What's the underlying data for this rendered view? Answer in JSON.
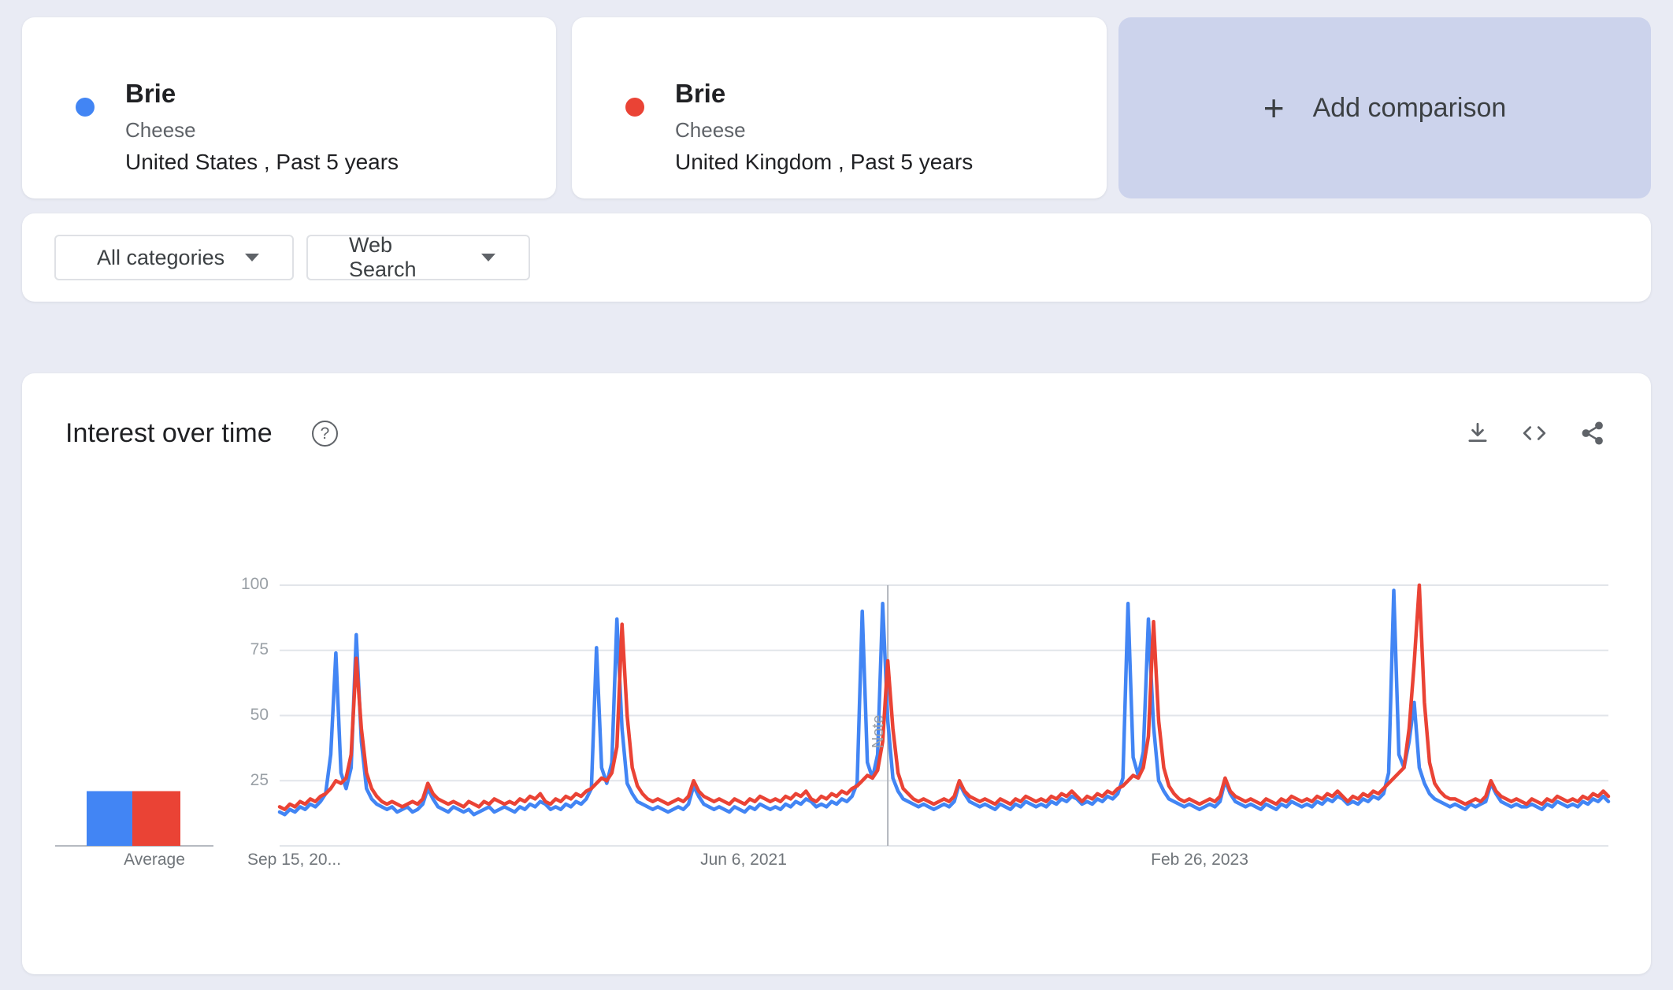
{
  "comparison_cards": [
    {
      "term": "Brie",
      "topic": "Cheese",
      "scope": "United States , Past 5 years",
      "color": "#4285f4"
    },
    {
      "term": "Brie",
      "topic": "Cheese",
      "scope": "United Kingdom , Past 5 years",
      "color": "#ea4335"
    }
  ],
  "add_comparison": {
    "plus_icon": "+",
    "label": "Add comparison"
  },
  "filters": {
    "category": "All categories",
    "search_type": "Web Search"
  },
  "chart_card": {
    "title": "Interest over time",
    "help_icon": "?"
  },
  "chart_data": {
    "type": "line",
    "title": "Interest over time",
    "x_tick_labels": [
      {
        "label": "Sep 15, 20...",
        "week": 0
      },
      {
        "label": "Jun 6, 2021",
        "week": 90
      },
      {
        "label": "Feb 26, 2023",
        "week": 180
      }
    ],
    "y_ticks": [
      25,
      50,
      75,
      100
    ],
    "ylim": [
      0,
      100
    ],
    "grid": true,
    "legend": "none",
    "note_label": "Note",
    "note_week": 119,
    "series": [
      {
        "name": "Brie (Cheese) — United States",
        "color": "#4285f4",
        "values": [
          13,
          12,
          14,
          13,
          15,
          14,
          16,
          15,
          17,
          20,
          35,
          74,
          28,
          22,
          30,
          81,
          40,
          22,
          18,
          16,
          15,
          14,
          15,
          13,
          14,
          15,
          13,
          14,
          16,
          22,
          18,
          15,
          14,
          13,
          15,
          14,
          13,
          14,
          12,
          13,
          14,
          15,
          13,
          14,
          15,
          14,
          13,
          15,
          14,
          16,
          15,
          17,
          16,
          14,
          15,
          14,
          16,
          15,
          17,
          16,
          18,
          22,
          76,
          30,
          24,
          32,
          87,
          45,
          24,
          20,
          17,
          16,
          15,
          14,
          15,
          14,
          13,
          14,
          15,
          14,
          16,
          23,
          19,
          16,
          15,
          14,
          15,
          14,
          13,
          15,
          14,
          13,
          15,
          14,
          16,
          15,
          14,
          15,
          14,
          16,
          15,
          17,
          16,
          18,
          17,
          15,
          16,
          15,
          17,
          16,
          18,
          17,
          19,
          24,
          90,
          32,
          26,
          35,
          93,
          48,
          26,
          21,
          18,
          17,
          16,
          15,
          16,
          15,
          14,
          15,
          16,
          15,
          17,
          24,
          20,
          17,
          16,
          15,
          16,
          15,
          14,
          16,
          15,
          14,
          16,
          15,
          17,
          16,
          15,
          16,
          15,
          17,
          16,
          18,
          17,
          19,
          18,
          16,
          17,
          16,
          18,
          17,
          19,
          18,
          20,
          26,
          93,
          34,
          27,
          36,
          87,
          46,
          25,
          21,
          18,
          17,
          16,
          15,
          16,
          15,
          14,
          15,
          16,
          15,
          17,
          25,
          20,
          17,
          16,
          15,
          16,
          15,
          14,
          16,
          15,
          14,
          16,
          15,
          17,
          16,
          15,
          16,
          15,
          17,
          16,
          18,
          17,
          19,
          18,
          16,
          17,
          16,
          18,
          17,
          19,
          18,
          20,
          28,
          98,
          35,
          30,
          40,
          55,
          30,
          24,
          20,
          18,
          17,
          16,
          15,
          16,
          15,
          14,
          16,
          15,
          16,
          17,
          24,
          20,
          17,
          16,
          15,
          16,
          15,
          15,
          16,
          15,
          14,
          16,
          15,
          17,
          16,
          15,
          16,
          15,
          17,
          16,
          18,
          17,
          19,
          17
        ]
      },
      {
        "name": "Brie (Cheese) — United Kingdom",
        "color": "#ea4335",
        "values": [
          15,
          14,
          16,
          15,
          17,
          16,
          18,
          17,
          19,
          20,
          22,
          25,
          24,
          26,
          35,
          72,
          45,
          28,
          22,
          19,
          17,
          16,
          17,
          16,
          15,
          16,
          17,
          16,
          18,
          24,
          20,
          18,
          17,
          16,
          17,
          16,
          15,
          17,
          16,
          15,
          17,
          16,
          18,
          17,
          16,
          17,
          16,
          18,
          17,
          19,
          18,
          20,
          17,
          16,
          18,
          17,
          19,
          18,
          20,
          19,
          21,
          22,
          24,
          26,
          25,
          28,
          38,
          85,
          50,
          30,
          23,
          20,
          18,
          17,
          18,
          17,
          16,
          17,
          18,
          17,
          19,
          25,
          21,
          19,
          18,
          17,
          18,
          17,
          16,
          18,
          17,
          16,
          18,
          17,
          19,
          18,
          17,
          18,
          17,
          19,
          18,
          20,
          19,
          21,
          18,
          17,
          19,
          18,
          20,
          19,
          21,
          20,
          22,
          23,
          25,
          27,
          26,
          29,
          40,
          71,
          45,
          28,
          22,
          20,
          18,
          17,
          18,
          17,
          16,
          17,
          18,
          17,
          19,
          25,
          21,
          19,
          18,
          17,
          18,
          17,
          16,
          18,
          17,
          16,
          18,
          17,
          19,
          18,
          17,
          18,
          17,
          19,
          18,
          20,
          19,
          21,
          19,
          17,
          19,
          18,
          20,
          19,
          21,
          20,
          22,
          23,
          25,
          27,
          26,
          30,
          42,
          86,
          48,
          30,
          23,
          20,
          18,
          17,
          18,
          17,
          16,
          17,
          18,
          17,
          19,
          26,
          21,
          19,
          18,
          17,
          18,
          17,
          16,
          18,
          17,
          16,
          18,
          17,
          19,
          18,
          17,
          18,
          17,
          19,
          18,
          20,
          19,
          21,
          19,
          17,
          19,
          18,
          20,
          19,
          21,
          20,
          22,
          24,
          26,
          28,
          30,
          45,
          70,
          100,
          55,
          32,
          24,
          21,
          19,
          18,
          18,
          17,
          16,
          17,
          18,
          17,
          19,
          25,
          21,
          19,
          18,
          17,
          18,
          17,
          16,
          18,
          17,
          16,
          18,
          17,
          19,
          18,
          17,
          18,
          17,
          19,
          18,
          20,
          19,
          21,
          19
        ]
      }
    ],
    "averages": {
      "label": "Average",
      "values": [
        21,
        21
      ]
    }
  }
}
